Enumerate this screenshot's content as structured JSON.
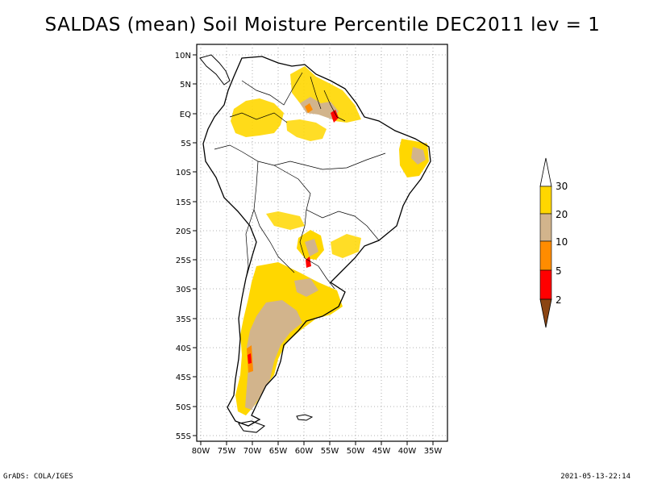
{
  "title": "SALDAS (mean) Soil Moisture Percentile DEC2011 lev = 1",
  "footer_left": "GrADS: COLA/IGES",
  "footer_right": "2021-05-13-22:14",
  "lat_labels": [
    "10N",
    "5N",
    "EQ",
    "5S",
    "10S",
    "15S",
    "20S",
    "25S",
    "30S",
    "35S",
    "40S",
    "45S",
    "50S",
    "55S"
  ],
  "lon_labels": [
    "80W",
    "75W",
    "70W",
    "65W",
    "60W",
    "55W",
    "50W",
    "45W",
    "40W",
    "35W"
  ],
  "colorbar": {
    "labels": [
      "30",
      "20",
      "10",
      "5",
      "2"
    ],
    "colors": {
      "top_cap": "#ffffff",
      "c20_30": "#ffd700",
      "c10_20": "#d2b48c",
      "c5_10": "#ff8c00",
      "c2_5": "#ff0000",
      "bottom_cap": "#8b4513"
    }
  },
  "colors": {
    "yellow": "#ffd700",
    "tan": "#d2b48c",
    "orange": "#ff8c00",
    "red": "#ff0000",
    "grid": "#9a9a9a"
  }
}
